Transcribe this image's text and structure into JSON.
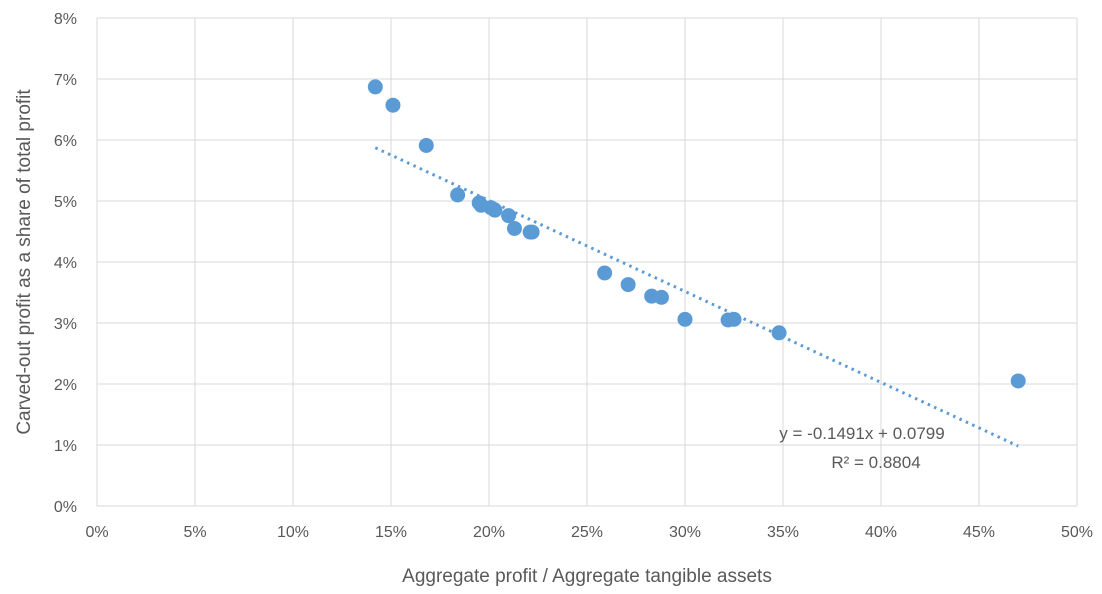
{
  "chart_data": {
    "type": "scatter",
    "title": "",
    "xlabel": "Aggregate profit / Aggregate tangible assets",
    "ylabel": "Carved-out profit as a share of total profit",
    "xlim": [
      0,
      0.5
    ],
    "ylim": [
      0,
      0.08
    ],
    "x_ticks": [
      "0%",
      "5%",
      "10%",
      "15%",
      "20%",
      "25%",
      "30%",
      "35%",
      "40%",
      "45%",
      "50%"
    ],
    "y_ticks": [
      "0%",
      "1%",
      "2%",
      "3%",
      "4%",
      "5%",
      "6%",
      "7%",
      "8%"
    ],
    "grid": true,
    "legend": "none",
    "colors": {
      "marker": "#5b9bd5",
      "trendline": "#5b9bd5",
      "grid": "#d9d9d9",
      "text": "#595959"
    },
    "series": [
      {
        "points": [
          {
            "x": 0.142,
            "y": 0.0687
          },
          {
            "x": 0.151,
            "y": 0.0657
          },
          {
            "x": 0.168,
            "y": 0.0591
          },
          {
            "x": 0.184,
            "y": 0.051
          },
          {
            "x": 0.195,
            "y": 0.0497
          },
          {
            "x": 0.196,
            "y": 0.0493
          },
          {
            "x": 0.201,
            "y": 0.0489
          },
          {
            "x": 0.203,
            "y": 0.0485
          },
          {
            "x": 0.21,
            "y": 0.0476
          },
          {
            "x": 0.213,
            "y": 0.0455
          },
          {
            "x": 0.221,
            "y": 0.0449
          },
          {
            "x": 0.222,
            "y": 0.0449
          },
          {
            "x": 0.259,
            "y": 0.0382
          },
          {
            "x": 0.271,
            "y": 0.0363
          },
          {
            "x": 0.283,
            "y": 0.0344
          },
          {
            "x": 0.288,
            "y": 0.0342
          },
          {
            "x": 0.3,
            "y": 0.0306
          },
          {
            "x": 0.322,
            "y": 0.0305
          },
          {
            "x": 0.325,
            "y": 0.0306
          },
          {
            "x": 0.348,
            "y": 0.0284
          },
          {
            "x": 0.47,
            "y": 0.0205
          }
        ]
      }
    ],
    "trendline": {
      "type": "linear",
      "slope": -0.1491,
      "intercept": 0.0799,
      "x_range": [
        0.142,
        0.47
      ],
      "equation_label": "y = -0.1491x + 0.0799",
      "r2_label": "R² = 0.8804"
    }
  }
}
